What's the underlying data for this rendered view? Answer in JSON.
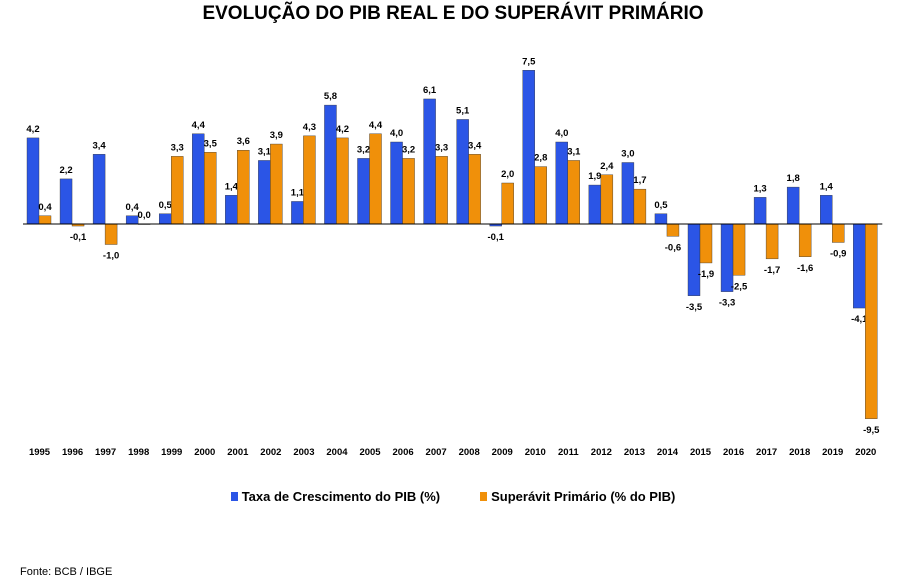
{
  "chart_data": {
    "type": "bar",
    "title": "EVOLUÇÃO DO PIB REAL E DO SUPERÁVIT PRIMÁRIO",
    "categories": [
      "1995",
      "1996",
      "1997",
      "1998",
      "1999",
      "2000",
      "2001",
      "2002",
      "2003",
      "2004",
      "2005",
      "2006",
      "2007",
      "2008",
      "2009",
      "2010",
      "2011",
      "2012",
      "2013",
      "2014",
      "2015",
      "2016",
      "2017",
      "2018",
      "2019",
      "2020"
    ],
    "series": [
      {
        "name": "Taxa de Crescimento do PIB (%)",
        "color": "#2b55e6",
        "values": [
          4.2,
          2.2,
          3.4,
          0.4,
          0.5,
          4.4,
          1.4,
          3.1,
          1.1,
          5.8,
          3.2,
          4.0,
          6.1,
          5.1,
          -0.1,
          7.5,
          4.0,
          1.9,
          3.0,
          0.5,
          -3.5,
          -3.3,
          1.3,
          1.8,
          1.4,
          -4.1
        ]
      },
      {
        "name": "Superávit Primário (% do PIB)",
        "color": "#f0900a",
        "values": [
          0.4,
          -0.1,
          -1.0,
          0.0,
          3.3,
          3.5,
          3.6,
          3.9,
          4.3,
          4.2,
          4.4,
          3.2,
          3.3,
          3.4,
          2.0,
          2.8,
          3.1,
          2.4,
          1.7,
          -0.6,
          -1.9,
          -2.5,
          -1.7,
          -1.6,
          -0.9,
          -9.5
        ]
      }
    ],
    "data_labels": true,
    "decimal_separator": ",",
    "legend_position": "bottom",
    "grid": false,
    "xlabel": "",
    "ylabel": ""
  },
  "source": "Fonte: BCB / IBGE"
}
